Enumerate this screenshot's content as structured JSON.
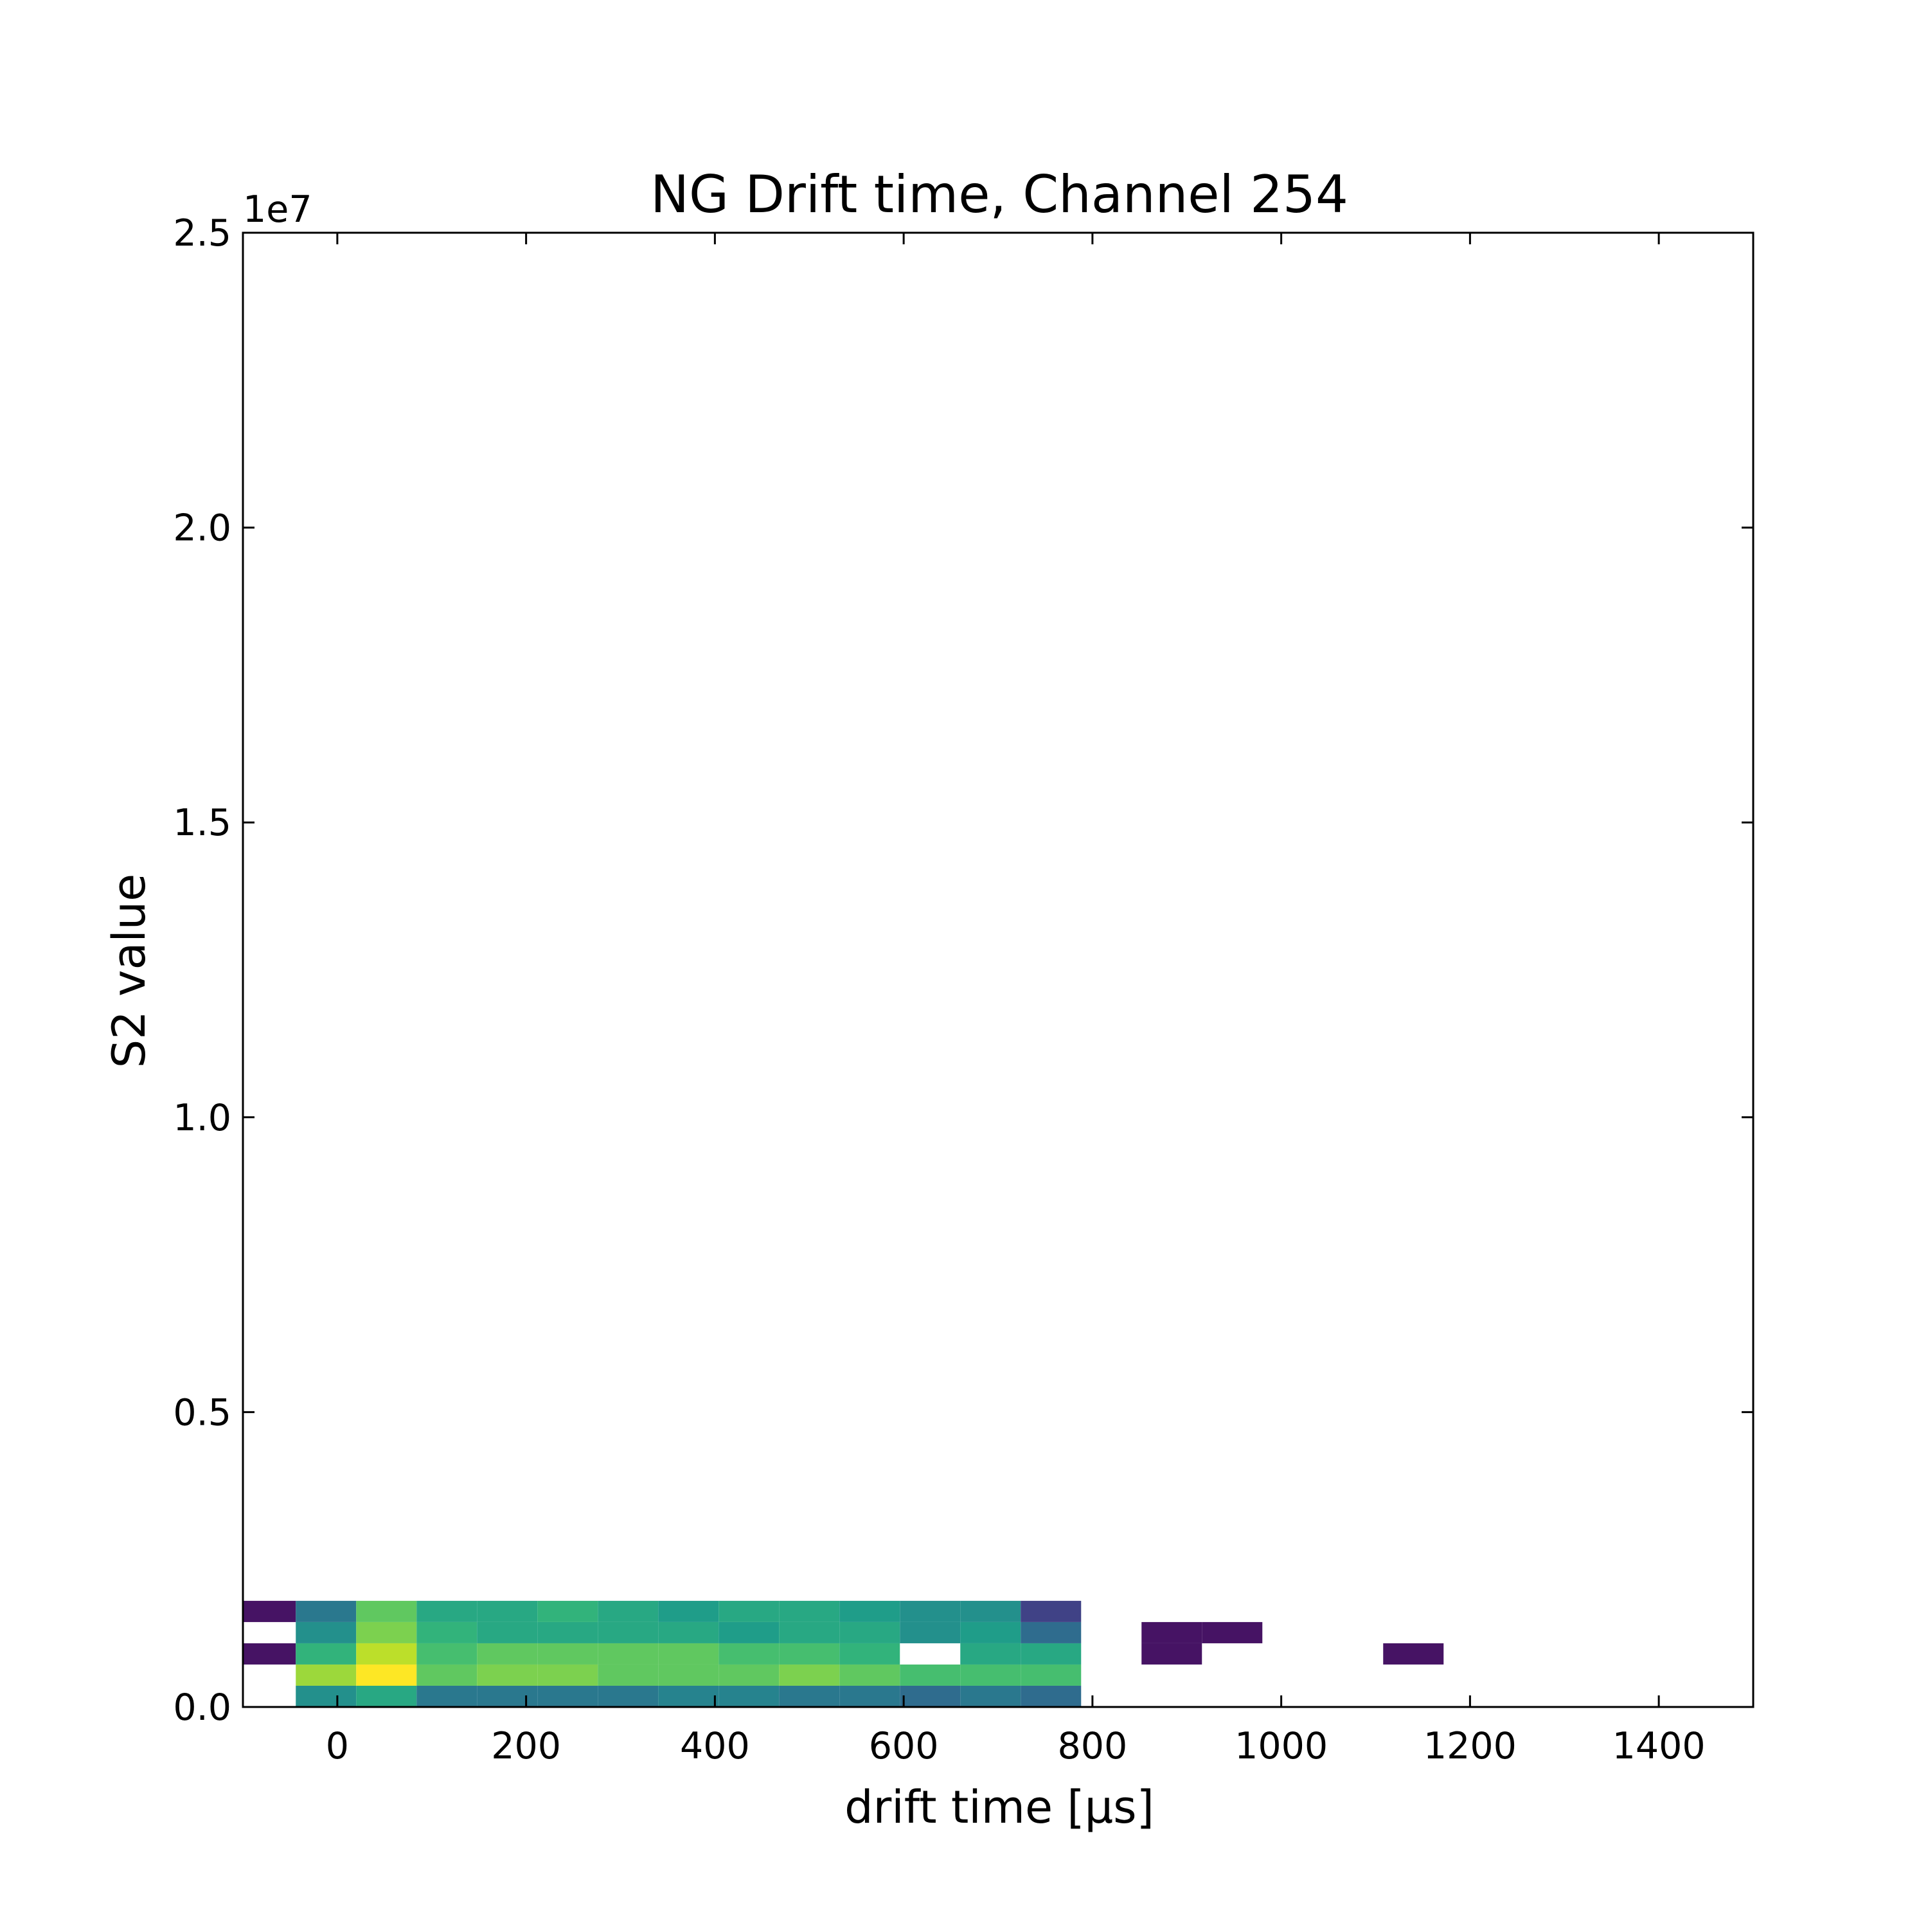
{
  "chart_data": {
    "type": "heatmap",
    "title": "NG Drift time, Channel 254",
    "xlabel": "drift time [µs]",
    "ylabel": "S2 value",
    "y_offset_label": "1e7",
    "xlim": [
      -100,
      1500
    ],
    "ylim": [
      0,
      25000000.0
    ],
    "x_ticks": [
      0,
      200,
      400,
      600,
      800,
      1000,
      1200,
      1400
    ],
    "x_tick_labels": [
      "0",
      "200",
      "400",
      "600",
      "800",
      "1000",
      "1200",
      "1400"
    ],
    "y_ticks": [
      0,
      5000000,
      10000000,
      15000000,
      20000000,
      25000000
    ],
    "y_tick_labels": [
      "0.0",
      "0.5",
      "1.0",
      "1.5",
      "2.0",
      "2.5"
    ],
    "bin_width_x": 64,
    "bin_height_y": 360000,
    "colormap": "viridis",
    "grid": false,
    "bins": [
      [
        -44,
        360000,
        5
      ],
      [
        20,
        360000,
        6
      ],
      [
        84,
        360000,
        4
      ],
      [
        148,
        360000,
        4
      ],
      [
        212,
        360000,
        4
      ],
      [
        276,
        360000,
        4
      ],
      [
        340,
        360000,
        4.5
      ],
      [
        404,
        360000,
        4.5
      ],
      [
        468,
        360000,
        4
      ],
      [
        532,
        360000,
        4
      ],
      [
        596,
        360000,
        3.5
      ],
      [
        660,
        360000,
        4
      ],
      [
        724,
        360000,
        3.5
      ],
      [
        -44,
        720000,
        8.5
      ],
      [
        20,
        720000,
        10
      ],
      [
        84,
        720000,
        7.5
      ],
      [
        148,
        720000,
        8
      ],
      [
        212,
        720000,
        8
      ],
      [
        276,
        720000,
        7.5
      ],
      [
        340,
        720000,
        7.5
      ],
      [
        404,
        720000,
        7.5
      ],
      [
        468,
        720000,
        8
      ],
      [
        532,
        720000,
        7.5
      ],
      [
        596,
        720000,
        7
      ],
      [
        660,
        720000,
        7
      ],
      [
        724,
        720000,
        7
      ],
      [
        -108,
        1080000,
        0.5
      ],
      [
        -44,
        1080000,
        6.5
      ],
      [
        20,
        1080000,
        9
      ],
      [
        84,
        1080000,
        7
      ],
      [
        148,
        1080000,
        7.5
      ],
      [
        212,
        1080000,
        7.5
      ],
      [
        276,
        1080000,
        7.5
      ],
      [
        340,
        1080000,
        7.5
      ],
      [
        404,
        1080000,
        7
      ],
      [
        468,
        1080000,
        7
      ],
      [
        532,
        1080000,
        6.5
      ],
      [
        660,
        1080000,
        6
      ],
      [
        724,
        1080000,
        6
      ],
      [
        852,
        1080000,
        0.5
      ],
      [
        1108,
        1080000,
        0.5
      ],
      [
        -44,
        1440000,
        5
      ],
      [
        20,
        1440000,
        8
      ],
      [
        84,
        1440000,
        6.5
      ],
      [
        148,
        1440000,
        6
      ],
      [
        212,
        1440000,
        6
      ],
      [
        276,
        1440000,
        6
      ],
      [
        340,
        1440000,
        6
      ],
      [
        404,
        1440000,
        5.5
      ],
      [
        468,
        1440000,
        6
      ],
      [
        532,
        1440000,
        6
      ],
      [
        596,
        1440000,
        5
      ],
      [
        660,
        1440000,
        5.5
      ],
      [
        724,
        1440000,
        3.5
      ],
      [
        852,
        1440000,
        0.5
      ],
      [
        916,
        1440000,
        0.5
      ],
      [
        -108,
        1800000,
        0.5
      ],
      [
        -44,
        1800000,
        4
      ],
      [
        20,
        1800000,
        7.5
      ],
      [
        84,
        1800000,
        6
      ],
      [
        148,
        1800000,
        6
      ],
      [
        212,
        1800000,
        6.5
      ],
      [
        276,
        1800000,
        6
      ],
      [
        340,
        1800000,
        5.5
      ],
      [
        404,
        1800000,
        6
      ],
      [
        468,
        1800000,
        6
      ],
      [
        532,
        1800000,
        5.5
      ],
      [
        596,
        1800000,
        5
      ],
      [
        660,
        1800000,
        5
      ],
      [
        724,
        1800000,
        2
      ]
    ]
  }
}
